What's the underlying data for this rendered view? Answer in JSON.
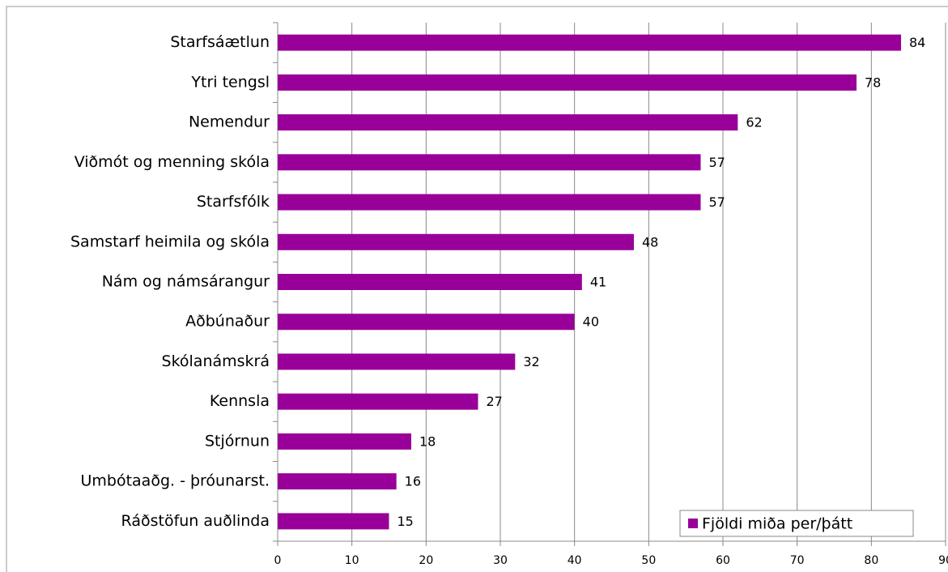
{
  "chart_data": {
    "type": "bar",
    "orientation": "horizontal",
    "categories": [
      "Starfsáætlun",
      "Ytri tengsl",
      "Nemendur",
      "Viðmót og menning skóla",
      "Starfsfólk",
      "Samstarf heimila og skóla",
      "Nám og námsárangur",
      "Aðbúnaður",
      "Skólanámskrá",
      "Kennsla",
      "Stjórnun",
      "Umbótaaðg. - þróunarst.",
      "Ráðstöfun auðlinda"
    ],
    "series": [
      {
        "name": "Fjöldi miða per/þátt",
        "color": "#990099",
        "values": [
          84,
          78,
          62,
          57,
          57,
          48,
          41,
          40,
          32,
          27,
          18,
          16,
          15
        ]
      }
    ],
    "xlim": [
      0,
      90
    ],
    "xticks": [
      0,
      10,
      20,
      30,
      40,
      50,
      60,
      70,
      80,
      90
    ],
    "grid": true,
    "legend": "bottom-right"
  }
}
